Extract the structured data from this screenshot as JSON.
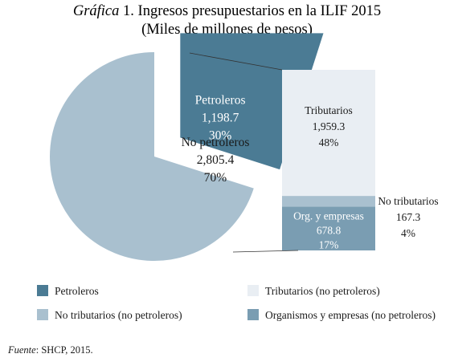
{
  "chart_data": {
    "type": "pie",
    "title_prefix": "Gráfica",
    "title": "1. Ingresos presupuestarios en la ILIF 2015",
    "subtitle": "(Miles de millones de pesos)",
    "slices": [
      {
        "name": "Petroleros",
        "value": 1198.7,
        "value_label": "1,198.7",
        "pct_label": "30%",
        "color": "#4b7b94"
      },
      {
        "name": "No petroleros",
        "value": 2805.4,
        "value_label": "2,805.4",
        "pct_label": "70%",
        "color": "#a9c0cf"
      }
    ],
    "breakdown": {
      "of": "No petroleros",
      "type": "stacked-bar",
      "segments": [
        {
          "name": "Tributarios",
          "value": 1959.3,
          "value_label": "1,959.3",
          "pct_label": "48%",
          "color": "#e9eef3"
        },
        {
          "name": "No tributarios",
          "value": 167.3,
          "value_label": "167.3",
          "pct_label": "4%",
          "color": "#a9c0cf"
        },
        {
          "name": "Org. y empresas",
          "value": 678.8,
          "value_label": "678.8",
          "pct_label": "17%",
          "color": "#7a9db2"
        }
      ]
    },
    "legend": [
      {
        "label": "Petroleros",
        "color": "#4b7b94"
      },
      {
        "label": "Tributarios (no petroleros)",
        "color": "#e9eef3"
      },
      {
        "label": "No tributarios (no petroleros)",
        "color": "#a9c0cf"
      },
      {
        "label": "Organismos y empresas (no petroleros)",
        "color": "#7a9db2"
      }
    ]
  },
  "source": {
    "label": "Fuente",
    "text": ": SHCP, 2015."
  }
}
